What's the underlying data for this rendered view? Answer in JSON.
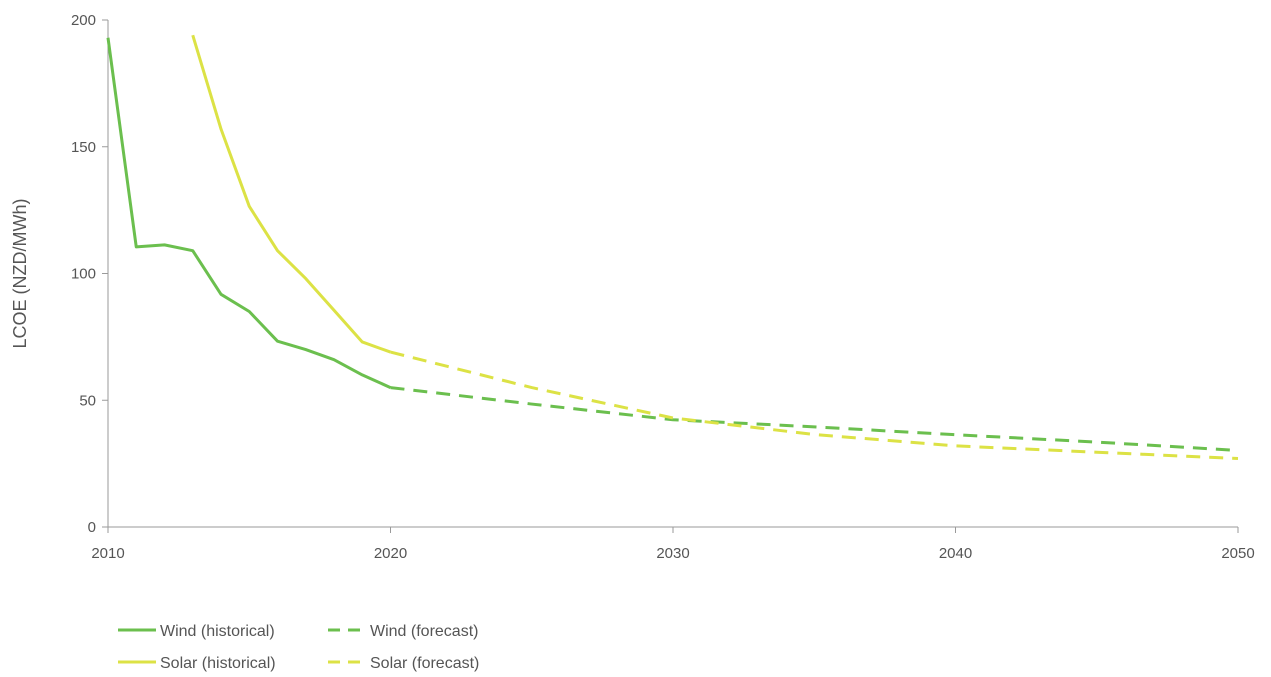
{
  "chart_data": {
    "type": "line",
    "title": "",
    "xlabel": "",
    "ylabel": "LCOE (NZD/MWh)",
    "xlim": [
      2010,
      2050
    ],
    "ylim": [
      0,
      200
    ],
    "x_ticks": [
      2010,
      2020,
      2030,
      2040,
      2050
    ],
    "y_ticks": [
      0,
      50,
      100,
      150,
      200
    ],
    "grid": false,
    "legend_position": "bottom-left",
    "series": [
      {
        "name": "Wind (historical)",
        "color": "#6bbf4e",
        "style": "solid",
        "x": [
          2010,
          2011,
          2012,
          2013,
          2014,
          2015,
          2016,
          2017,
          2018,
          2019,
          2020
        ],
        "y": [
          193,
          110.5,
          111.3,
          109,
          91.8,
          85,
          73.3,
          70,
          66,
          60,
          55
        ]
      },
      {
        "name": "Wind (forecast)",
        "color": "#6bbf4e",
        "style": "dashed",
        "x": [
          2020,
          2025,
          2030,
          2035,
          2040,
          2045,
          2050
        ],
        "y": [
          55,
          48.5,
          42.3,
          39.5,
          36.4,
          33.5,
          30.2
        ]
      },
      {
        "name": "Solar (historical)",
        "color": "#dce245",
        "style": "solid",
        "x": [
          2013,
          2014,
          2015,
          2016,
          2017,
          2018,
          2019,
          2020
        ],
        "y": [
          194,
          157,
          126.5,
          109,
          98,
          85.5,
          73,
          69
        ]
      },
      {
        "name": "Solar (forecast)",
        "color": "#dce245",
        "style": "dashed",
        "x": [
          2020,
          2025,
          2030,
          2035,
          2040,
          2045,
          2050
        ],
        "y": [
          69,
          55,
          43,
          36.5,
          32,
          29.5,
          27
        ]
      }
    ]
  }
}
